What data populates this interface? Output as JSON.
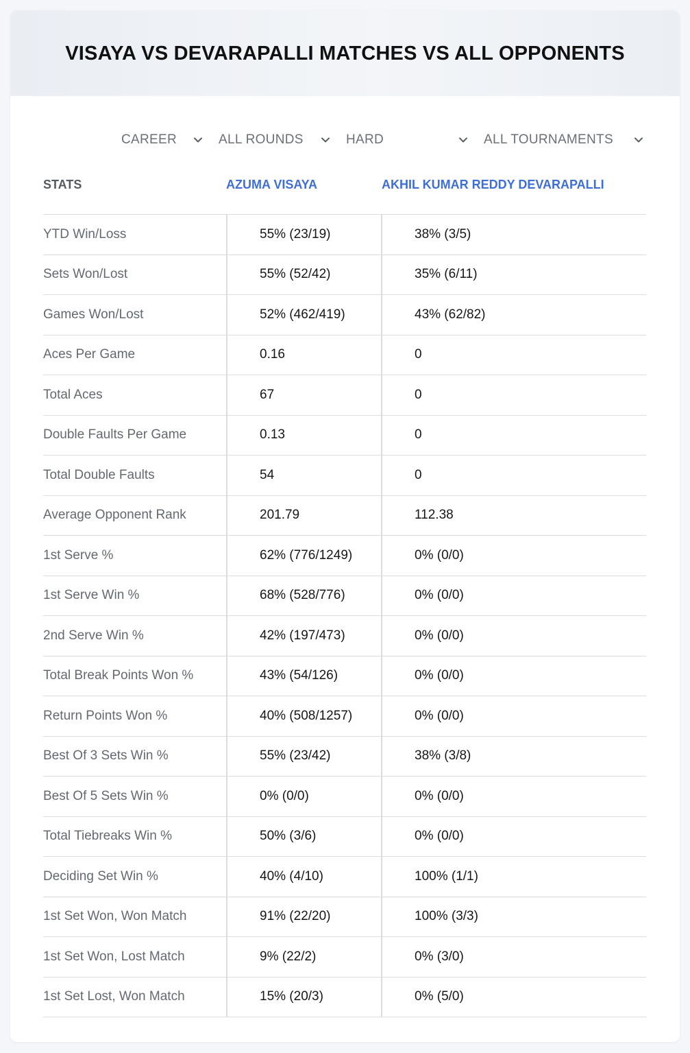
{
  "title": "VISAYA VS DEVARAPALLI MATCHES VS ALL OPPONENTS",
  "filters": [
    {
      "label": "CAREER",
      "icon": "chevron-down-icon"
    },
    {
      "label": "ALL ROUNDS",
      "icon": "chevron-down-icon"
    },
    {
      "label": "HARD",
      "icon": "chevron-down-icon"
    },
    {
      "label": "ALL TOURNAMENTS",
      "icon": "chevron-down-icon"
    }
  ],
  "table": {
    "headers": {
      "stats": "STATS",
      "player1": "AZUMA VISAYA",
      "player2": "AKHIL KUMAR REDDY DEVARAPALLI"
    },
    "rows": [
      {
        "label": "YTD Win/Loss",
        "p1": "55% (23/19)",
        "p2": "38% (3/5)"
      },
      {
        "label": "Sets Won/Lost",
        "p1": "55% (52/42)",
        "p2": "35% (6/11)"
      },
      {
        "label": "Games Won/Lost",
        "p1": "52% (462/419)",
        "p2": "43% (62/82)"
      },
      {
        "label": "Aces Per Game",
        "p1": "0.16",
        "p2": "0"
      },
      {
        "label": "Total Aces",
        "p1": "67",
        "p2": "0"
      },
      {
        "label": "Double Faults Per Game",
        "p1": "0.13",
        "p2": "0"
      },
      {
        "label": "Total Double Faults",
        "p1": "54",
        "p2": "0"
      },
      {
        "label": "Average Opponent Rank",
        "p1": "201.79",
        "p2": "112.38"
      },
      {
        "label": "1st Serve %",
        "p1": "62% (776/1249)",
        "p2": "0% (0/0)"
      },
      {
        "label": "1st Serve Win %",
        "p1": "68% (528/776)",
        "p2": "0% (0/0)"
      },
      {
        "label": "2nd Serve Win %",
        "p1": "42% (197/473)",
        "p2": "0% (0/0)"
      },
      {
        "label": "Total Break Points Won %",
        "p1": "43% (54/126)",
        "p2": "0% (0/0)"
      },
      {
        "label": "Return Points Won %",
        "p1": "40% (508/1257)",
        "p2": "0% (0/0)"
      },
      {
        "label": "Best Of 3 Sets Win %",
        "p1": "55% (23/42)",
        "p2": "38% (3/8)"
      },
      {
        "label": "Best Of 5 Sets Win %",
        "p1": "0% (0/0)",
        "p2": "0% (0/0)"
      },
      {
        "label": "Total Tiebreaks Win %",
        "p1": "50% (3/6)",
        "p2": "0% (0/0)"
      },
      {
        "label": "Deciding Set Win %",
        "p1": "40% (4/10)",
        "p2": "100% (1/1)"
      },
      {
        "label": "1st Set Won, Won Match",
        "p1": "91% (22/20)",
        "p2": "100% (3/3)"
      },
      {
        "label": "1st Set Won, Lost Match",
        "p1": "9% (22/2)",
        "p2": "0% (3/0)"
      },
      {
        "label": "1st Set Lost, Won Match",
        "p1": "15% (20/3)",
        "p2": "0% (5/0)"
      }
    ]
  },
  "colors": {
    "accent": "#3f6fd6",
    "header_bg": "#eef1f5",
    "border": "#dcdcdc",
    "label_text": "#646970"
  }
}
